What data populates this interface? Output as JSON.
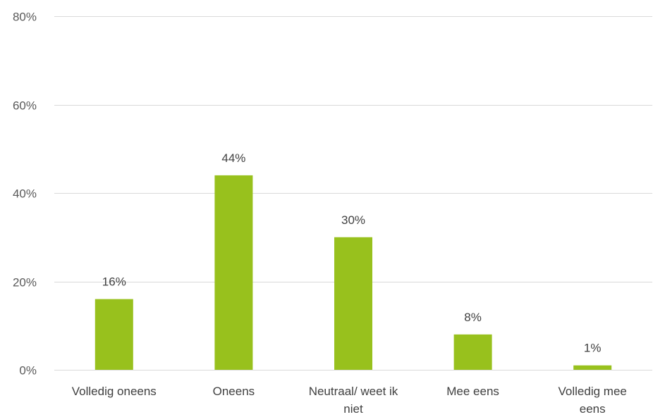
{
  "chart_data": {
    "type": "bar",
    "categories": [
      [
        "Volledig oneens"
      ],
      [
        "Oneens"
      ],
      [
        "Neutraal/ weet ik",
        "niet"
      ],
      [
        "Mee eens"
      ],
      [
        "Volledig mee",
        "eens"
      ]
    ],
    "values": [
      16,
      44,
      30,
      8,
      1
    ],
    "data_labels": [
      "16%",
      "44%",
      "30%",
      "8%",
      "1%"
    ],
    "ylim": [
      0,
      80
    ],
    "yticks": [
      0,
      20,
      40,
      60,
      80
    ],
    "ytick_labels": [
      "0%",
      "20%",
      "40%",
      "60%",
      "80%"
    ],
    "bar_color": "#98c11d",
    "grid": true,
    "legend": "none"
  }
}
